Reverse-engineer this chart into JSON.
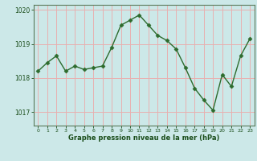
{
  "x": [
    0,
    1,
    2,
    3,
    4,
    5,
    6,
    7,
    8,
    9,
    10,
    11,
    12,
    13,
    14,
    15,
    16,
    17,
    18,
    19,
    20,
    21,
    22,
    23
  ],
  "y": [
    1018.2,
    1018.45,
    1018.65,
    1018.2,
    1018.35,
    1018.25,
    1018.3,
    1018.35,
    1018.9,
    1019.55,
    1019.7,
    1019.85,
    1019.55,
    1019.25,
    1019.1,
    1018.85,
    1018.3,
    1017.7,
    1017.35,
    1017.05,
    1018.1,
    1017.75,
    1018.65,
    1019.15
  ],
  "line_color": "#2d6b2d",
  "marker": "D",
  "marker_size": 2.5,
  "bg_color": "#cce8e8",
  "grid_color": "#e8b0b0",
  "xlabel": "Graphe pression niveau de la mer (hPa)",
  "xlabel_color": "#1a4d1a",
  "tick_color": "#1a4d1a",
  "axis_color": "#5a7a5a",
  "ylim": [
    1016.6,
    1020.15
  ],
  "yticks": [
    1017,
    1018,
    1019,
    1020
  ],
  "xticks": [
    0,
    1,
    2,
    3,
    4,
    5,
    6,
    7,
    8,
    9,
    10,
    11,
    12,
    13,
    14,
    15,
    16,
    17,
    18,
    19,
    20,
    21,
    22,
    23
  ]
}
